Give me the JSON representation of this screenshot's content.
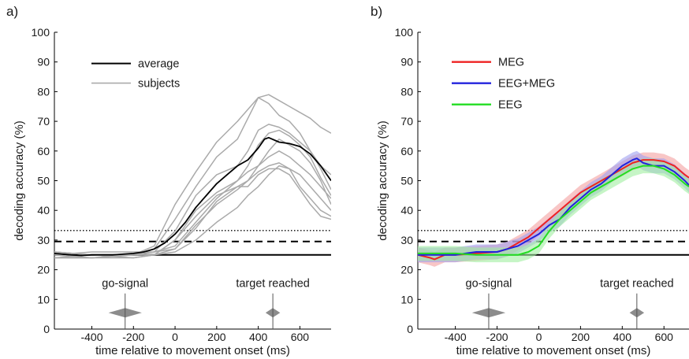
{
  "chart_data": [
    {
      "type": "line",
      "panel_label": "a)",
      "xlabel": "time relative to movement onset (ms)",
      "ylabel": "decoding accuracy (%)",
      "xlim": [
        -580,
        750
      ],
      "ylim": [
        0,
        100
      ],
      "xticks": [
        -400,
        -200,
        0,
        200,
        400,
        600
      ],
      "yticks": [
        0,
        10,
        20,
        30,
        40,
        50,
        60,
        70,
        80,
        90,
        100
      ],
      "legend": {
        "position": "top-left",
        "entries": [
          {
            "label": "average",
            "color": "#000000"
          },
          {
            "label": "subjects",
            "color": "#aaaaaa"
          }
        ]
      },
      "reference_lines": [
        {
          "style": "solid",
          "y": 25
        },
        {
          "style": "dashed",
          "y": 29.5
        },
        {
          "style": "dotted",
          "y": 33.2
        }
      ],
      "annotations": [
        {
          "text": "go-signal",
          "x": -240,
          "spread": 80
        },
        {
          "text": "target reached",
          "x": 470,
          "spread": 35
        }
      ],
      "series": [
        {
          "name": "average",
          "color": "#000000",
          "x": [
            -580,
            -500,
            -450,
            -400,
            -300,
            -200,
            -150,
            -100,
            -50,
            0,
            50,
            100,
            150,
            200,
            250,
            300,
            350,
            400,
            430,
            450,
            500,
            550,
            600,
            650,
            700,
            750
          ],
          "y": [
            25.5,
            25,
            24.8,
            25,
            25,
            25.5,
            26,
            27,
            29,
            32,
            36,
            41,
            45,
            49,
            52,
            55,
            57,
            61,
            64,
            64.5,
            63,
            62.5,
            61.5,
            59,
            55,
            50
          ]
        },
        {
          "color": "#aaaaaa",
          "x": [
            -580,
            -400,
            -200,
            -100,
            0,
            100,
            200,
            300,
            350,
            400,
            450,
            500,
            550,
            600,
            650,
            700,
            750
          ],
          "y": [
            26,
            25,
            25,
            27,
            37,
            48,
            58,
            64,
            71,
            78,
            79,
            77,
            75,
            73,
            71,
            68,
            66
          ]
        },
        {
          "color": "#aaaaaa",
          "x": [
            -580,
            -400,
            -200,
            -100,
            0,
            100,
            200,
            300,
            350,
            400,
            450,
            500,
            550,
            600,
            650,
            700,
            750
          ],
          "y": [
            24,
            24,
            25,
            28,
            42,
            53,
            63,
            70,
            74,
            78,
            76,
            72,
            70,
            66,
            60,
            55,
            52
          ]
        },
        {
          "color": "#aaaaaa",
          "x": [
            -580,
            -400,
            -200,
            -100,
            0,
            100,
            200,
            300,
            350,
            400,
            450,
            500,
            550,
            600,
            650,
            700,
            750
          ],
          "y": [
            25,
            26,
            26,
            26,
            33,
            45,
            52,
            55,
            60,
            67,
            69,
            68,
            66,
            63,
            60,
            54,
            47
          ]
        },
        {
          "color": "#aaaaaa",
          "x": [
            -580,
            -400,
            -200,
            -100,
            0,
            100,
            200,
            300,
            350,
            400,
            450,
            500,
            550,
            600,
            650,
            700,
            750
          ],
          "y": [
            25,
            24,
            25,
            25,
            30,
            40,
            46,
            50,
            55,
            62,
            66,
            67,
            65,
            62,
            58,
            51,
            45
          ]
        },
        {
          "color": "#aaaaaa",
          "x": [
            -580,
            -400,
            -200,
            -100,
            0,
            100,
            200,
            300,
            350,
            400,
            450,
            500,
            550,
            600,
            650,
            700,
            750
          ],
          "y": [
            26,
            25,
            25,
            26,
            28,
            36,
            44,
            50,
            53,
            55,
            60,
            64,
            62,
            60,
            56,
            50,
            42
          ]
        },
        {
          "color": "#aaaaaa",
          "x": [
            -580,
            -400,
            -200,
            -100,
            0,
            100,
            200,
            300,
            350,
            400,
            450,
            500,
            550,
            600,
            650,
            700,
            750
          ],
          "y": [
            24,
            25,
            24,
            25,
            30,
            38,
            45,
            48,
            50,
            55,
            58,
            60,
            58,
            55,
            52,
            48,
            44
          ]
        },
        {
          "color": "#aaaaaa",
          "x": [
            -580,
            -400,
            -200,
            -100,
            0,
            100,
            200,
            300,
            350,
            400,
            450,
            500,
            550,
            600,
            650,
            700,
            750
          ],
          "y": [
            25,
            24,
            25,
            25,
            26,
            30,
            36,
            41,
            45,
            48,
            52,
            55,
            54,
            52,
            48,
            44,
            40
          ]
        },
        {
          "color": "#aaaaaa",
          "x": [
            -580,
            -400,
            -200,
            -100,
            0,
            100,
            200,
            300,
            350,
            400,
            450,
            500,
            550,
            600,
            650,
            700,
            750
          ],
          "y": [
            24,
            24,
            24,
            25,
            27,
            35,
            42,
            47,
            50,
            53,
            55,
            56,
            54,
            48,
            44,
            40,
            38
          ]
        },
        {
          "color": "#aaaaaa",
          "x": [
            -580,
            -400,
            -200,
            -100,
            0,
            100,
            200,
            300,
            350,
            400,
            450,
            500,
            550,
            600,
            650,
            700,
            750
          ],
          "y": [
            26,
            25,
            25,
            26,
            27,
            34,
            43,
            48,
            48,
            52,
            54,
            54,
            52,
            47,
            42,
            38,
            37
          ]
        }
      ]
    },
    {
      "type": "line",
      "panel_label": "b)",
      "xlabel": "time relative to movement onset (ms)",
      "ylabel": "decoding accuracy (%)",
      "xlim": [
        -580,
        720
      ],
      "ylim": [
        0,
        100
      ],
      "xticks": [
        -400,
        -200,
        0,
        200,
        400,
        600
      ],
      "yticks": [
        0,
        10,
        20,
        30,
        40,
        50,
        60,
        70,
        80,
        90,
        100
      ],
      "legend": {
        "position": "top-left",
        "entries": [
          {
            "label": "MEG",
            "color": "#ee2222"
          },
          {
            "label": "EEG+MEG",
            "color": "#2222dd"
          },
          {
            "label": "EEG",
            "color": "#22dd22"
          }
        ]
      },
      "reference_lines": [
        {
          "style": "solid",
          "y": 25
        },
        {
          "style": "dashed",
          "y": 29.5
        },
        {
          "style": "dotted",
          "y": 33.2
        }
      ],
      "annotations": [
        {
          "text": "go-signal",
          "x": -240,
          "spread": 80
        },
        {
          "text": "target reached",
          "x": 470,
          "spread": 35
        }
      ],
      "series": [
        {
          "name": "MEG",
          "color": "#ee2222",
          "band_color": "#f4a0a0",
          "band_halfwidth": 2.5,
          "x": [
            -580,
            -520,
            -500,
            -450,
            -400,
            -300,
            -200,
            -150,
            -100,
            -50,
            0,
            50,
            100,
            150,
            200,
            250,
            300,
            350,
            400,
            450,
            500,
            550,
            600,
            650,
            700,
            720
          ],
          "y": [
            25,
            24,
            23.5,
            25,
            25,
            25.5,
            26,
            27,
            29,
            31,
            34,
            37,
            40,
            43,
            46,
            48,
            50,
            52,
            54,
            56,
            57,
            57,
            56.5,
            55,
            52,
            51
          ]
        },
        {
          "name": "EEG+MEG",
          "color": "#2222dd",
          "band_color": "#a0a0f0",
          "band_halfwidth": 2.5,
          "x": [
            -580,
            -500,
            -400,
            -300,
            -200,
            -150,
            -100,
            -50,
            0,
            50,
            100,
            150,
            200,
            250,
            300,
            350,
            400,
            450,
            470,
            500,
            550,
            600,
            650,
            700,
            720
          ],
          "y": [
            25,
            25,
            25,
            26,
            26,
            27,
            28,
            30,
            32,
            35,
            37,
            41,
            44,
            47,
            49,
            52,
            55,
            57,
            57.5,
            56,
            55,
            55,
            53,
            50,
            48.5
          ]
        },
        {
          "name": "EEG",
          "color": "#22dd22",
          "band_color": "#a0eea0",
          "band_halfwidth": 2.5,
          "x": [
            -580,
            -500,
            -400,
            -300,
            -200,
            -150,
            -100,
            -50,
            0,
            50,
            100,
            150,
            200,
            250,
            300,
            350,
            400,
            450,
            500,
            550,
            600,
            650,
            700,
            720
          ],
          "y": [
            25.5,
            25.5,
            25.5,
            25,
            25,
            25,
            25,
            26,
            28,
            33,
            37,
            40,
            43,
            46,
            48,
            50,
            52,
            54,
            55,
            55,
            54,
            52,
            49,
            48
          ]
        }
      ]
    }
  ]
}
